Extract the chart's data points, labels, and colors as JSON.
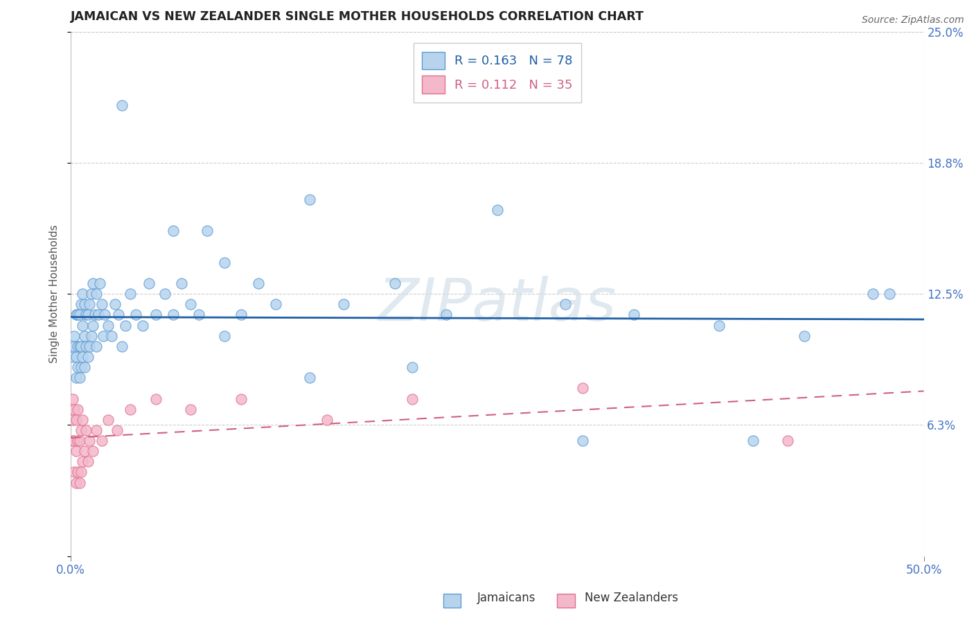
{
  "title": "JAMAICAN VS NEW ZEALANDER SINGLE MOTHER HOUSEHOLDS CORRELATION CHART",
  "source": "Source: ZipAtlas.com",
  "ylabel": "Single Mother Households",
  "xlim": [
    0.0,
    0.5
  ],
  "ylim": [
    0.0,
    0.25
  ],
  "ytick_values": [
    0.0,
    0.0625,
    0.125,
    0.1875,
    0.25
  ],
  "ytick_labels": [
    "",
    "6.3%",
    "12.5%",
    "18.8%",
    "25.0%"
  ],
  "legend_r1": "0.163",
  "legend_n1": "78",
  "legend_r2": "0.112",
  "legend_n2": "35",
  "color_jamaican_fill": "#b8d4ed",
  "color_jamaican_edge": "#5b9bd5",
  "color_nz_fill": "#f4b8cb",
  "color_nz_edge": "#e07090",
  "color_line_jamaican": "#1f5fa6",
  "color_line_nz": "#d06080",
  "jamaican_x": [
    0.001,
    0.002,
    0.002,
    0.003,
    0.003,
    0.003,
    0.004,
    0.004,
    0.004,
    0.005,
    0.005,
    0.005,
    0.006,
    0.006,
    0.006,
    0.007,
    0.007,
    0.007,
    0.008,
    0.008,
    0.008,
    0.009,
    0.009,
    0.01,
    0.01,
    0.011,
    0.011,
    0.012,
    0.012,
    0.013,
    0.013,
    0.014,
    0.015,
    0.015,
    0.016,
    0.017,
    0.018,
    0.019,
    0.02,
    0.022,
    0.024,
    0.026,
    0.028,
    0.03,
    0.032,
    0.035,
    0.038,
    0.042,
    0.046,
    0.05,
    0.055,
    0.06,
    0.065,
    0.07,
    0.075,
    0.08,
    0.09,
    0.1,
    0.11,
    0.12,
    0.14,
    0.16,
    0.19,
    0.22,
    0.25,
    0.29,
    0.33,
    0.38,
    0.43,
    0.47,
    0.03,
    0.06,
    0.09,
    0.14,
    0.2,
    0.3,
    0.4,
    0.48
  ],
  "jamaican_y": [
    0.095,
    0.1,
    0.105,
    0.085,
    0.095,
    0.115,
    0.09,
    0.1,
    0.115,
    0.085,
    0.1,
    0.115,
    0.09,
    0.1,
    0.12,
    0.095,
    0.11,
    0.125,
    0.09,
    0.105,
    0.12,
    0.1,
    0.115,
    0.095,
    0.115,
    0.1,
    0.12,
    0.105,
    0.125,
    0.11,
    0.13,
    0.115,
    0.1,
    0.125,
    0.115,
    0.13,
    0.12,
    0.105,
    0.115,
    0.11,
    0.105,
    0.12,
    0.115,
    0.1,
    0.11,
    0.125,
    0.115,
    0.11,
    0.13,
    0.115,
    0.125,
    0.115,
    0.13,
    0.12,
    0.115,
    0.155,
    0.14,
    0.115,
    0.13,
    0.12,
    0.17,
    0.12,
    0.13,
    0.115,
    0.165,
    0.12,
    0.115,
    0.11,
    0.105,
    0.125,
    0.215,
    0.155,
    0.105,
    0.085,
    0.09,
    0.055,
    0.055,
    0.125
  ],
  "nz_x": [
    0.001,
    0.001,
    0.001,
    0.002,
    0.002,
    0.002,
    0.003,
    0.003,
    0.003,
    0.004,
    0.004,
    0.004,
    0.005,
    0.005,
    0.006,
    0.006,
    0.007,
    0.007,
    0.008,
    0.009,
    0.01,
    0.011,
    0.013,
    0.015,
    0.018,
    0.022,
    0.027,
    0.035,
    0.05,
    0.07,
    0.1,
    0.15,
    0.2,
    0.3,
    0.42
  ],
  "nz_y": [
    0.055,
    0.065,
    0.075,
    0.04,
    0.055,
    0.07,
    0.035,
    0.05,
    0.065,
    0.04,
    0.055,
    0.07,
    0.035,
    0.055,
    0.04,
    0.06,
    0.045,
    0.065,
    0.05,
    0.06,
    0.045,
    0.055,
    0.05,
    0.06,
    0.055,
    0.065,
    0.06,
    0.07,
    0.075,
    0.07,
    0.075,
    0.065,
    0.075,
    0.08,
    0.055
  ]
}
